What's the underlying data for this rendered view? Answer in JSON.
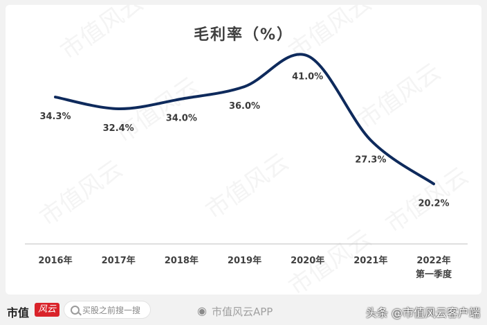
{
  "chart_data": {
    "type": "line",
    "title": "毛利率（%）",
    "categories": [
      {
        "year": "2016年",
        "sub": ""
      },
      {
        "year": "2017年",
        "sub": ""
      },
      {
        "year": "2018年",
        "sub": ""
      },
      {
        "year": "2019年",
        "sub": ""
      },
      {
        "year": "2020年",
        "sub": ""
      },
      {
        "year": "2021年",
        "sub": ""
      },
      {
        "year": "2022年",
        "sub": "第一季度"
      }
    ],
    "series": [
      {
        "values": [
          34.3,
          32.4,
          34.0,
          36.0,
          41.0,
          27.3,
          20.2
        ]
      }
    ],
    "data_labels": [
      "34.3%",
      "32.4%",
      "34.0%",
      "36.0%",
      "41.0%",
      "27.3%",
      "20.2%"
    ],
    "ylim": [
      10,
      45
    ],
    "grid": false,
    "line_color": "#0e2a5c"
  },
  "watermark": "市值风云",
  "footer": {
    "logo": "市值",
    "logo_badge": "风云",
    "search_placeholder": "买股之前搜一搜",
    "weibo_icon": "weibo-icon",
    "weibo_text": "市值风云APP",
    "toutiao": "头条 @市值风云客户端"
  }
}
